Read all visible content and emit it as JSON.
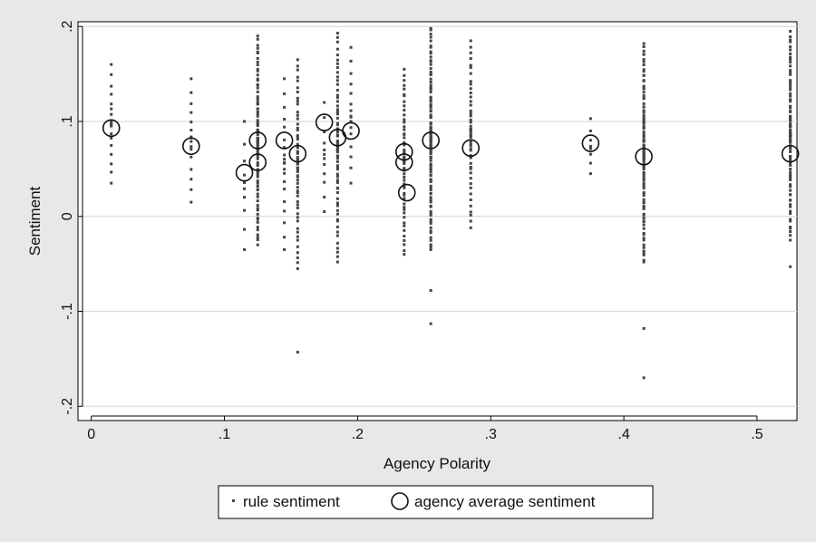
{
  "chart_data": {
    "type": "scatter",
    "xlabel": "Agency Polarity",
    "ylabel": "Sentiment",
    "xlim": [
      -0.01,
      0.53
    ],
    "ylim": [
      -0.215,
      0.205
    ],
    "xticks": [
      0,
      0.1,
      0.2,
      0.3,
      0.4,
      0.5
    ],
    "xtick_labels": [
      "0",
      ".1",
      ".2",
      ".3",
      ".4",
      ".5"
    ],
    "yticks": [
      -0.2,
      -0.1,
      0,
      0.1,
      0.2
    ],
    "ytick_labels": [
      "-.2",
      "-.1",
      "0",
      ".1",
      ".2"
    ],
    "grid": "horizontal",
    "legend_position": "bottom",
    "colors": {
      "page_background": "#e8e8e8",
      "plot_background": "#ffffff",
      "grid": "#dcdcdc",
      "marker": "#444444"
    },
    "series": [
      {
        "name": "rule sentiment",
        "marker": "small-square",
        "columns": [
          {
            "x": 0.015,
            "y_min": 0.035,
            "y_max": 0.16,
            "n": 18
          },
          {
            "x": 0.075,
            "y_min": 0.015,
            "y_max": 0.145,
            "n": 16
          },
          {
            "x": 0.115,
            "y_min": -0.035,
            "y_max": 0.1,
            "n": 10
          },
          {
            "x": 0.125,
            "y_min": -0.03,
            "y_max": 0.19,
            "n": 90
          },
          {
            "x": 0.145,
            "y_min": -0.035,
            "y_max": 0.145,
            "n": 20
          },
          {
            "x": 0.155,
            "y_min": -0.055,
            "y_max": 0.165,
            "n": 60,
            "outliers": [
              -0.143
            ]
          },
          {
            "x": 0.175,
            "y_min": 0.005,
            "y_max": 0.12,
            "n": 12
          },
          {
            "x": 0.185,
            "y_min": -0.048,
            "y_max": 0.193,
            "n": 70
          },
          {
            "x": 0.195,
            "y_min": 0.035,
            "y_max": 0.178,
            "n": 16
          },
          {
            "x": 0.235,
            "y_min": -0.04,
            "y_max": 0.155,
            "n": 60
          },
          {
            "x": 0.255,
            "y_min": -0.035,
            "y_max": 0.198,
            "n": 110,
            "outliers": [
              -0.078,
              -0.113
            ]
          },
          {
            "x": 0.285,
            "y_min": -0.012,
            "y_max": 0.185,
            "n": 50
          },
          {
            "x": 0.375,
            "y_min": 0.045,
            "y_max": 0.103,
            "n": 8
          },
          {
            "x": 0.415,
            "y_min": -0.048,
            "y_max": 0.182,
            "n": 110,
            "outliers": [
              -0.118,
              -0.17
            ]
          },
          {
            "x": 0.525,
            "y_min": -0.025,
            "y_max": 0.195,
            "n": 90,
            "outliers": [
              -0.053
            ]
          }
        ]
      },
      {
        "name": "agency average sentiment",
        "marker": "hollow-circle",
        "points": [
          {
            "x": 0.015,
            "y": 0.093
          },
          {
            "x": 0.075,
            "y": 0.074
          },
          {
            "x": 0.115,
            "y": 0.046
          },
          {
            "x": 0.125,
            "y": 0.057
          },
          {
            "x": 0.125,
            "y": 0.08
          },
          {
            "x": 0.145,
            "y": 0.08
          },
          {
            "x": 0.155,
            "y": 0.066
          },
          {
            "x": 0.175,
            "y": 0.099
          },
          {
            "x": 0.185,
            "y": 0.083
          },
          {
            "x": 0.195,
            "y": 0.09
          },
          {
            "x": 0.235,
            "y": 0.068
          },
          {
            "x": 0.235,
            "y": 0.057
          },
          {
            "x": 0.237,
            "y": 0.025
          },
          {
            "x": 0.255,
            "y": 0.08
          },
          {
            "x": 0.285,
            "y": 0.072
          },
          {
            "x": 0.375,
            "y": 0.077
          },
          {
            "x": 0.415,
            "y": 0.063
          },
          {
            "x": 0.525,
            "y": 0.066
          }
        ]
      }
    ]
  }
}
